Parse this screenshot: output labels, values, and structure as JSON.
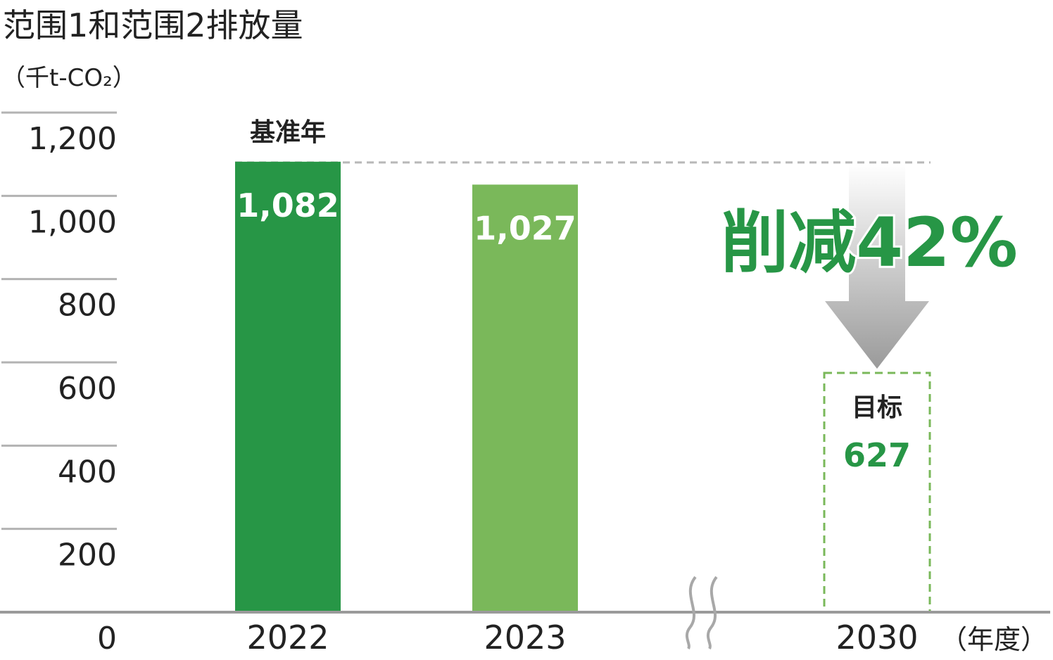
{
  "chart_data": {
    "type": "bar",
    "title": "范围1和范围2排放量",
    "ylabel": "（千t-CO₂）",
    "xlabel": "（年度）",
    "categories": [
      "2022",
      "2023",
      "2030"
    ],
    "values": [
      1082,
      1027,
      627
    ],
    "value_labels": [
      "1,082",
      "1,027",
      "627"
    ],
    "ylim": [
      0,
      1200
    ],
    "yticks": [
      0,
      200,
      400,
      600,
      800,
      1000,
      1200
    ],
    "ytick_labels": [
      "0",
      "200",
      "400",
      "600",
      "800",
      "1,000",
      "1,200"
    ],
    "grid": false,
    "axis_break_between": [
      "2023",
      "2030"
    ],
    "annotations": {
      "base_year": "基准年",
      "target": "目标",
      "reduction": "削减42%"
    },
    "colors": {
      "2022": "#279646",
      "2023": "#7ab85a",
      "target_border": "#7ab85a",
      "reduction_text": "#279646",
      "tick_lines": "#b3b3b3",
      "reference_line": "#b8b8b8"
    }
  }
}
